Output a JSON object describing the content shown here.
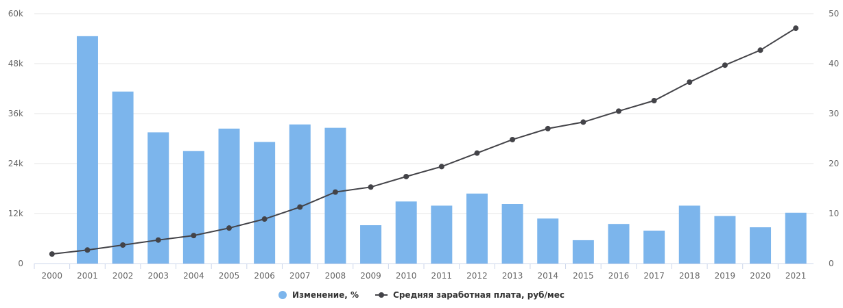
{
  "chart_data": {
    "type": "bar",
    "categories": [
      "2000",
      "2001",
      "2002",
      "2003",
      "2004",
      "2005",
      "2006",
      "2007",
      "2008",
      "2009",
      "2010",
      "2011",
      "2012",
      "2013",
      "2014",
      "2015",
      "2016",
      "2017",
      "2018",
      "2019",
      "2020",
      "2021"
    ],
    "series": [
      {
        "name": "Изменение, %",
        "type": "bar",
        "axis": "left",
        "color": "#7cb5ec",
        "values": [
          null,
          54600,
          41300,
          31500,
          27000,
          32400,
          29200,
          33400,
          32600,
          9200,
          14900,
          13900,
          16800,
          14300,
          10800,
          5600,
          9500,
          7900,
          13900,
          11400,
          8700,
          12200
        ]
      },
      {
        "name": "Средняя заработная плата, руб/мес",
        "type": "line",
        "axis": "right",
        "color": "#434348",
        "values": [
          1.9,
          2.7,
          3.7,
          4.7,
          5.6,
          7.1,
          8.9,
          11.3,
          14.3,
          15.3,
          17.4,
          19.4,
          22.1,
          24.8,
          27.0,
          28.3,
          30.5,
          32.6,
          36.3,
          39.7,
          42.7,
          47.1
        ]
      }
    ],
    "y_left": {
      "ylim": [
        0,
        60000
      ],
      "ticks": [
        0,
        12000,
        24000,
        36000,
        48000,
        60000
      ],
      "tick_labels": [
        "0",
        "12k",
        "24k",
        "36k",
        "48k",
        "60k"
      ]
    },
    "y_right": {
      "ylim": [
        0,
        50
      ],
      "ticks": [
        0,
        10,
        20,
        30,
        40,
        50
      ],
      "tick_labels": [
        "0",
        "10",
        "20",
        "30",
        "40",
        "50"
      ]
    },
    "grid": true,
    "legend_position": "bottom-center"
  },
  "legend": {
    "bar_label": "Изменение, %",
    "line_label": "Средняя заработная плата, руб/мес"
  },
  "colors": {
    "bar": "#7cb5ec",
    "line": "#434348",
    "grid": "#e6e6e6",
    "axis": "#ccd6eb"
  }
}
